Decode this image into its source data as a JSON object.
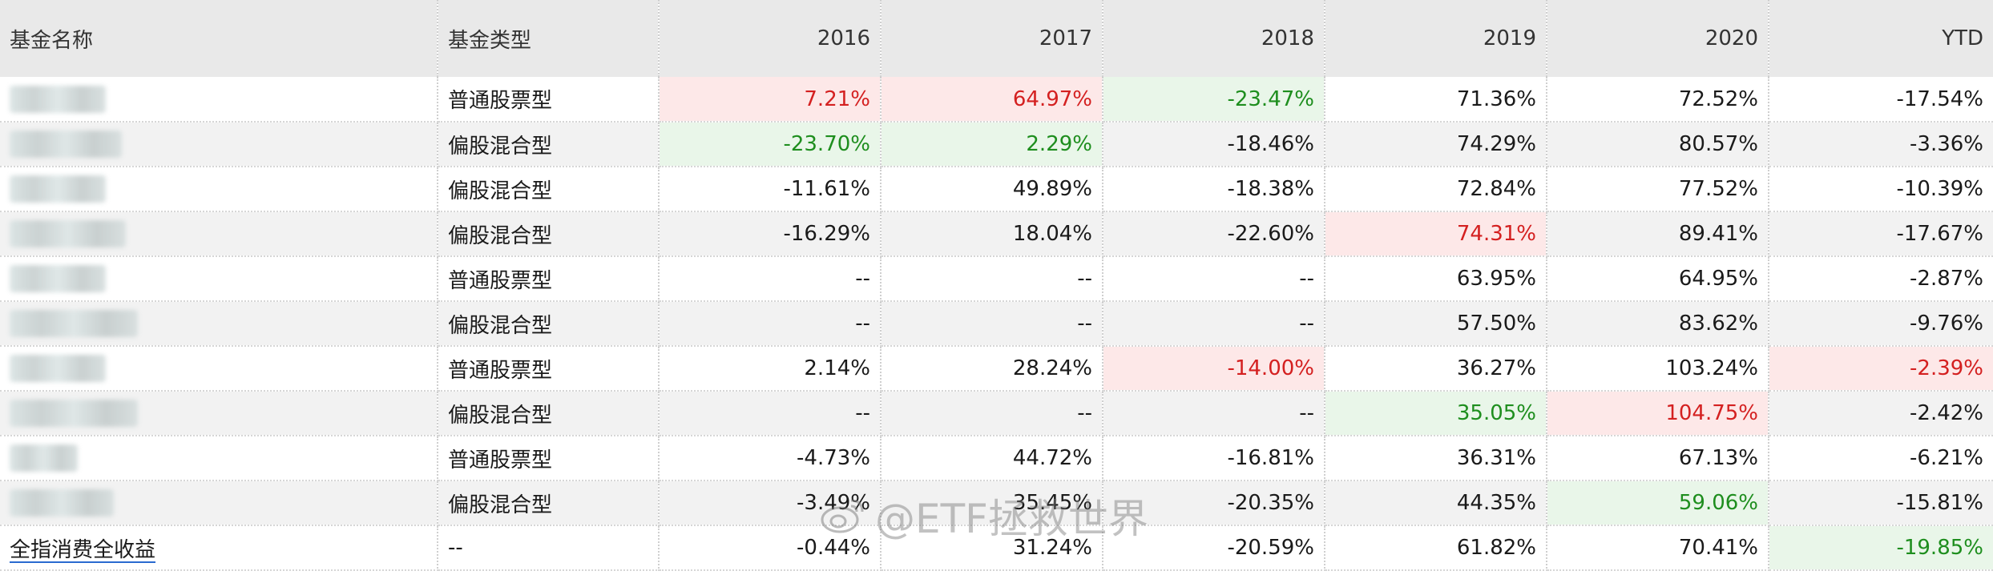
{
  "table": {
    "headers": [
      "基金名称",
      "基金类型",
      "2016",
      "2017",
      "2018",
      "2019",
      "2020",
      "YTD"
    ],
    "rows": [
      {
        "name": "",
        "name_hidden": true,
        "type": "普通股票型",
        "values": [
          "7.21%",
          "64.97%",
          "-23.47%",
          "71.36%",
          "72.52%",
          "-17.54%"
        ],
        "highlights": [
          "red",
          "red",
          "green",
          "",
          "",
          ""
        ]
      },
      {
        "name": "",
        "name_hidden": true,
        "type": "偏股混合型",
        "values": [
          "-23.70%",
          "2.29%",
          "-18.46%",
          "74.29%",
          "80.57%",
          "-3.36%"
        ],
        "highlights": [
          "green",
          "green",
          "",
          "",
          "",
          ""
        ]
      },
      {
        "name": "",
        "name_hidden": true,
        "type": "偏股混合型",
        "values": [
          "-11.61%",
          "49.89%",
          "-18.38%",
          "72.84%",
          "77.52%",
          "-10.39%"
        ],
        "highlights": [
          "",
          "",
          "",
          "",
          "",
          ""
        ]
      },
      {
        "name": "",
        "name_hidden": true,
        "type": "偏股混合型",
        "values": [
          "-16.29%",
          "18.04%",
          "-22.60%",
          "74.31%",
          "89.41%",
          "-17.67%"
        ],
        "highlights": [
          "",
          "",
          "",
          "red",
          "",
          ""
        ]
      },
      {
        "name": "",
        "name_hidden": true,
        "type": "普通股票型",
        "values": [
          "--",
          "--",
          "--",
          "63.95%",
          "64.95%",
          "-2.87%"
        ],
        "highlights": [
          "",
          "",
          "",
          "",
          "",
          ""
        ]
      },
      {
        "name": "",
        "name_hidden": true,
        "type": "偏股混合型",
        "values": [
          "--",
          "--",
          "--",
          "57.50%",
          "83.62%",
          "-9.76%"
        ],
        "highlights": [
          "",
          "",
          "",
          "",
          "",
          ""
        ]
      },
      {
        "name": "",
        "name_hidden": true,
        "type": "普通股票型",
        "values": [
          "2.14%",
          "28.24%",
          "-14.00%",
          "36.27%",
          "103.24%",
          "-2.39%"
        ],
        "highlights": [
          "",
          "",
          "red",
          "",
          "",
          "red"
        ]
      },
      {
        "name": "",
        "name_hidden": true,
        "type": "偏股混合型",
        "values": [
          "--",
          "--",
          "--",
          "35.05%",
          "104.75%",
          "-2.42%"
        ],
        "highlights": [
          "",
          "",
          "",
          "green",
          "red",
          ""
        ]
      },
      {
        "name": "",
        "name_hidden": true,
        "type": "普通股票型",
        "values": [
          "-4.73%",
          "44.72%",
          "-16.81%",
          "36.31%",
          "67.13%",
          "-6.21%"
        ],
        "highlights": [
          "",
          "",
          "",
          "",
          "",
          ""
        ]
      },
      {
        "name": "",
        "name_hidden": true,
        "type": "偏股混合型",
        "values": [
          "-3.49%",
          "35.45%",
          "-20.35%",
          "44.35%",
          "59.06%",
          "-15.81%"
        ],
        "highlights": [
          "",
          "",
          "",
          "",
          "green",
          ""
        ]
      },
      {
        "name": "全指消费全收益",
        "name_hidden": false,
        "type": "--",
        "values": [
          "-0.44%",
          "31.24%",
          "-20.59%",
          "61.82%",
          "70.41%",
          "-19.85%"
        ],
        "highlights": [
          "",
          "",
          "",
          "",
          "",
          "green"
        ]
      }
    ]
  },
  "watermark": {
    "text": "@ETF拯救世界",
    "icon": "weibo-logo-icon"
  },
  "colors": {
    "header_bg": "#e9e9e9",
    "row_alt_bg": "#f2f2f2",
    "positive_red_bg": "#fde8e8",
    "positive_red_text": "#d42020",
    "negative_green_bg": "#e9f6e9",
    "negative_green_text": "#1e8e1e"
  }
}
